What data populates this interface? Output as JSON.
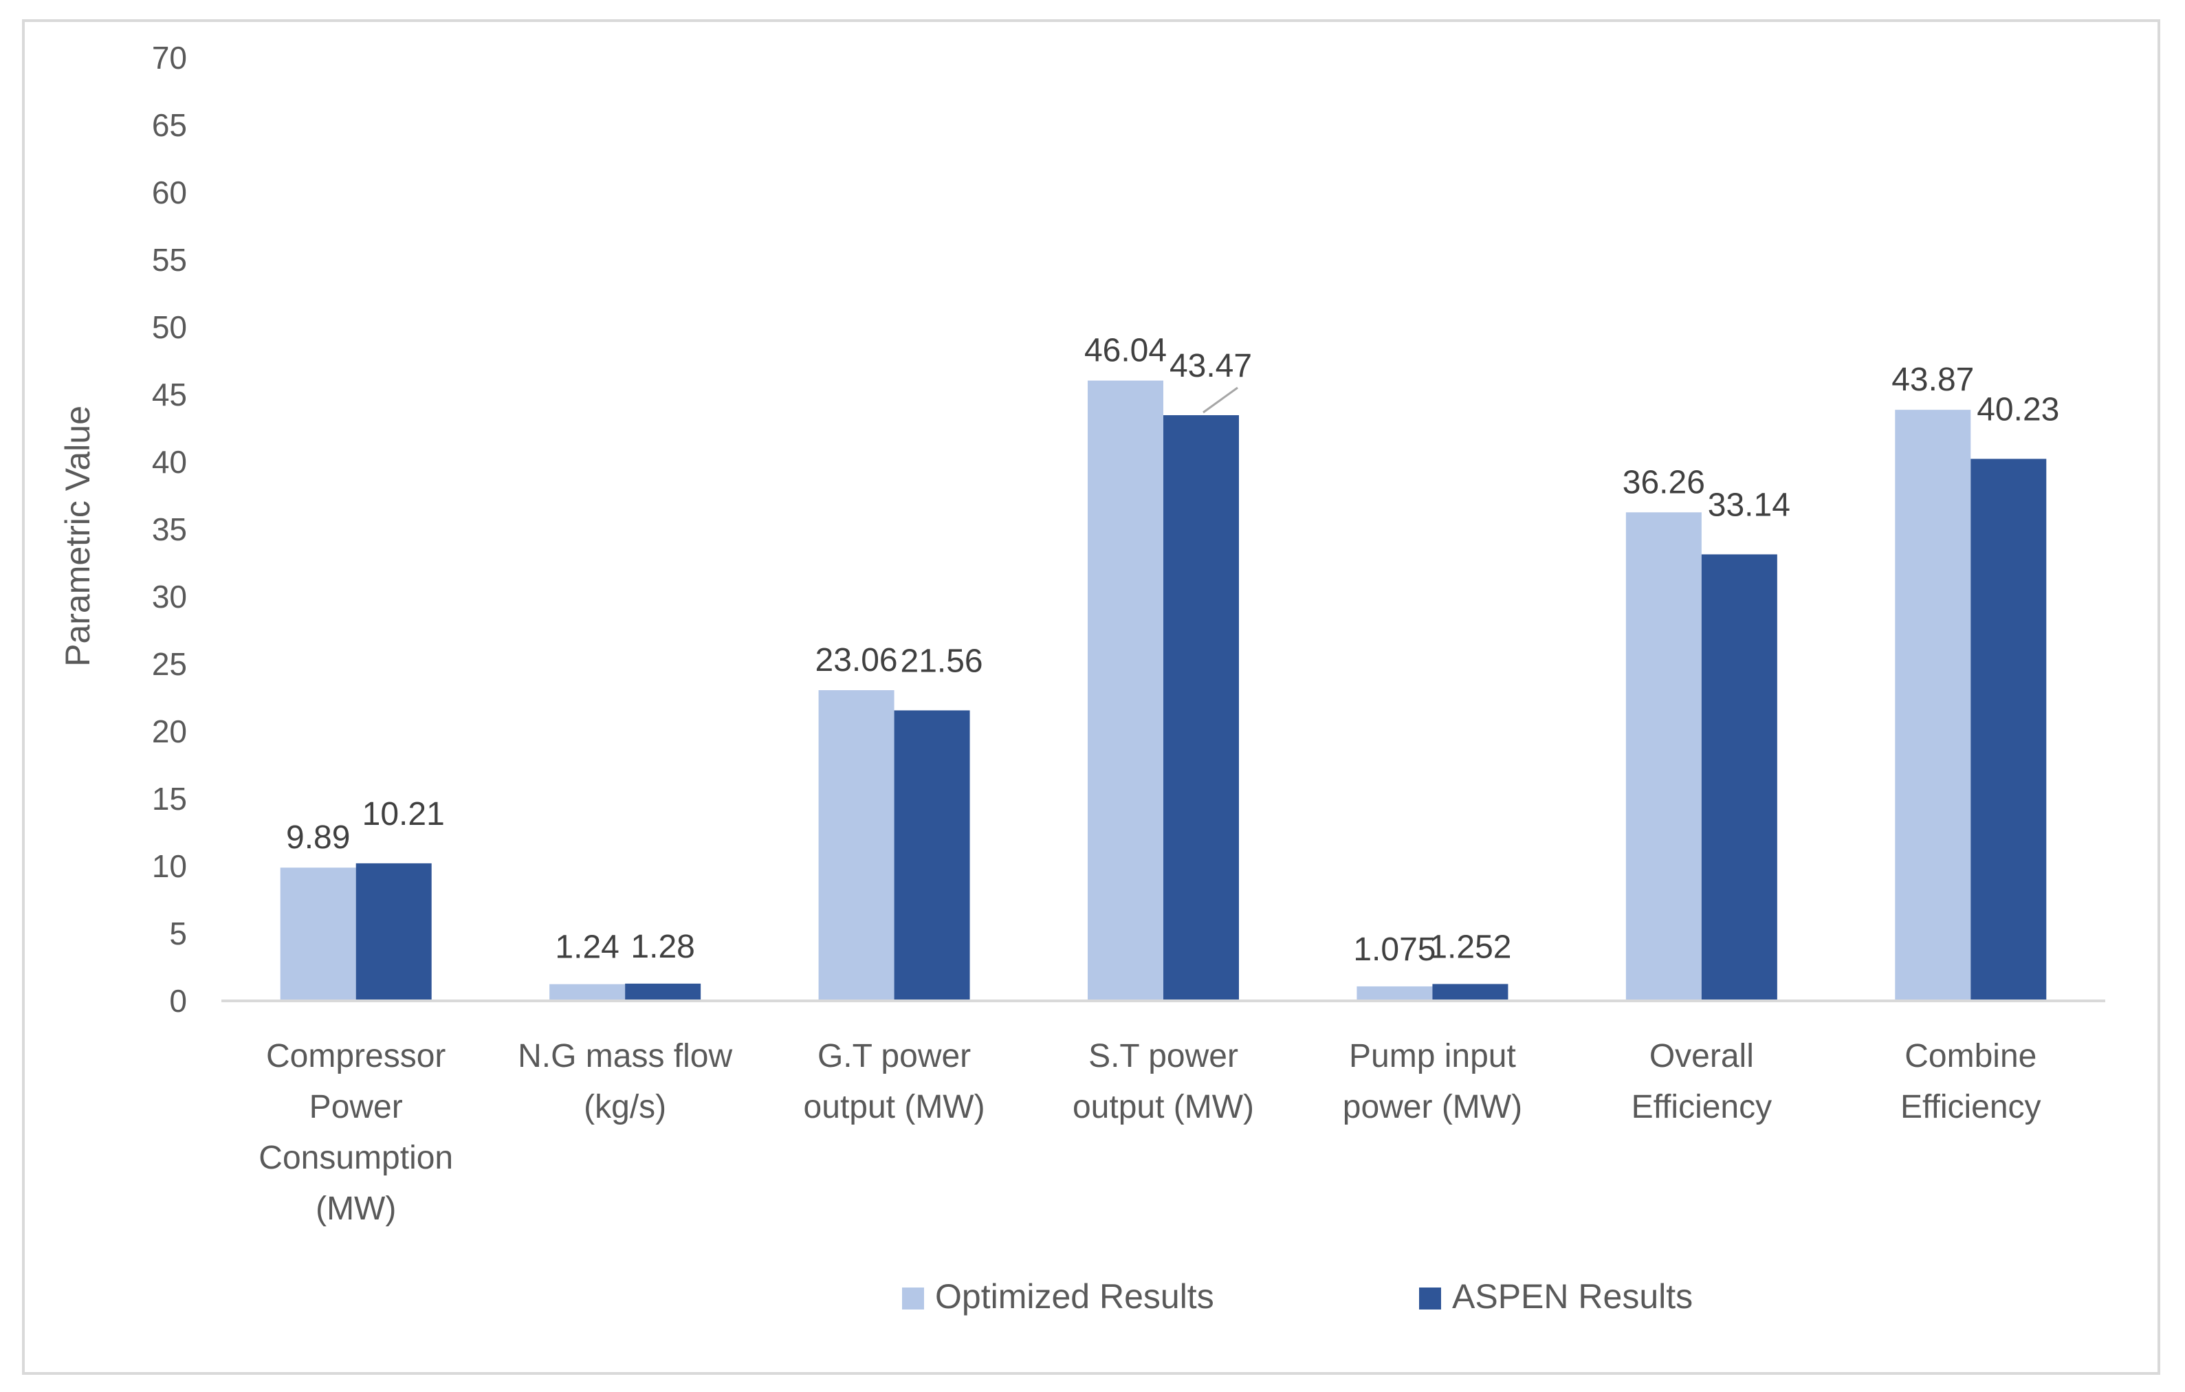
{
  "chart_data": {
    "type": "bar",
    "title": "",
    "xlabel": "",
    "ylabel": "Parametric Value",
    "ylim": [
      0,
      70
    ],
    "yticks": [
      0,
      5,
      10,
      15,
      20,
      25,
      30,
      35,
      40,
      45,
      50,
      55,
      60,
      65,
      70
    ],
    "grid": false,
    "legend_position": "bottom",
    "categories": [
      [
        "Compressor",
        "Power",
        "Consumption",
        "(MW)"
      ],
      [
        "N.G mass flow",
        "(kg/s)"
      ],
      [
        "G.T power",
        "output (MW)"
      ],
      [
        "S.T power",
        "output (MW)"
      ],
      [
        "Pump input",
        "power (MW)"
      ],
      [
        "Overall",
        "Efficiency"
      ],
      [
        "Combine",
        "Efficiency"
      ]
    ],
    "series": [
      {
        "name": "Optimized Results",
        "color": "#b4c7e7",
        "values": [
          9.89,
          1.24,
          23.06,
          46.04,
          1.075,
          36.26,
          43.87
        ],
        "labels": [
          "9.89",
          "1.24",
          "23.06",
          "46.04",
          "1.075",
          "36.26",
          "43.87"
        ]
      },
      {
        "name": "ASPEN Results",
        "color": "#2f5597",
        "values": [
          10.21,
          1.28,
          21.56,
          43.47,
          1.252,
          33.14,
          40.23
        ],
        "labels": [
          "10.21",
          "1.28",
          "21.56",
          "43.47",
          "1.252",
          "33.14",
          "40.23"
        ]
      }
    ]
  },
  "colors": {
    "axis_line": "#d9d9d9",
    "text": "#595959",
    "frame": "#d9d9d9"
  }
}
